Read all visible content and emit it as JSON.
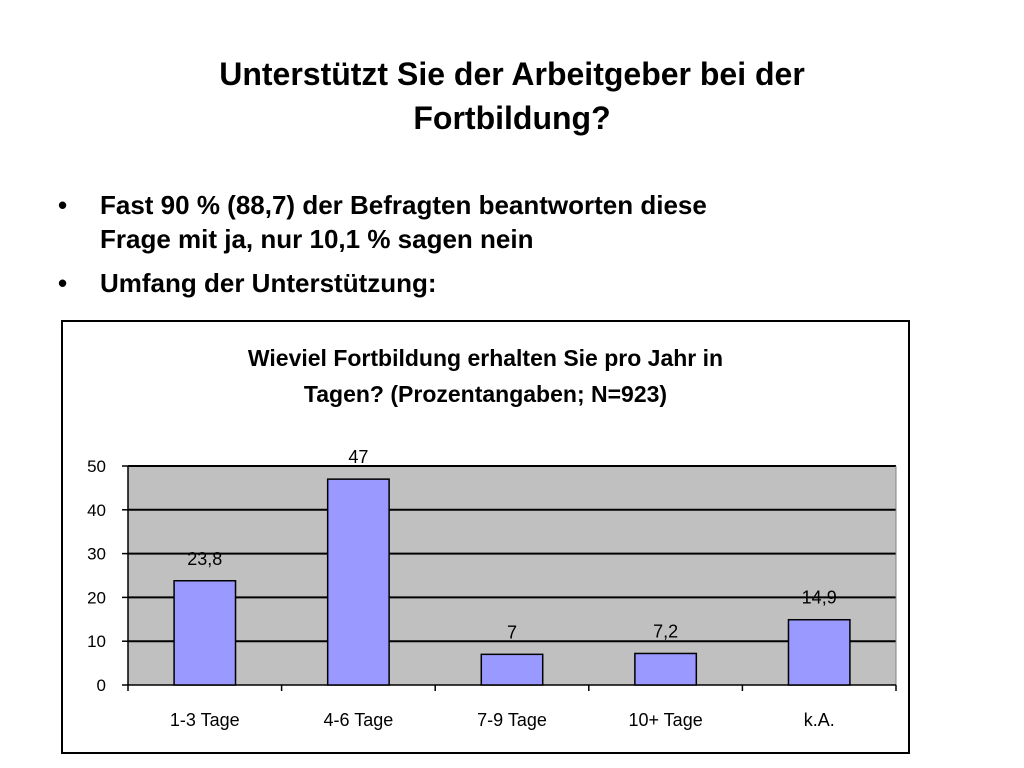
{
  "slide": {
    "title_line1": "Unterstützt Sie der Arbeitgeber bei der",
    "title_line2": "Fortbildung?",
    "bullets": [
      {
        "line1": "Fast 90 % (88,7) der Befragten beantworten diese",
        "line2": "Frage mit ja, nur 10,1 % sagen nein"
      },
      {
        "line1": "Umfang der Unterstützung:",
        "line2": ""
      }
    ],
    "bullet_symbol": "•"
  },
  "chart_data": {
    "type": "bar",
    "title_line1": "Wieviel Fortbildung erhalten Sie pro Jahr in",
    "title_line2": "Tagen? (Prozentangaben; N=923)",
    "categories": [
      "1-3 Tage",
      "4-6 Tage",
      "7-9 Tage",
      "10+ Tage",
      "k.A."
    ],
    "values": [
      23.8,
      47,
      7,
      7.2,
      14.9
    ],
    "data_labels": [
      "23,8",
      "47",
      "7",
      "7,2",
      "14,9"
    ],
    "ylim": [
      0,
      50
    ],
    "yticks": [
      0,
      10,
      20,
      30,
      40,
      50
    ],
    "xlabel": "",
    "ylabel": "",
    "grid": true,
    "colors": {
      "bar_fill": "#9999ff",
      "plot_background": "#c0c0c0",
      "gridline": "#000000"
    }
  }
}
